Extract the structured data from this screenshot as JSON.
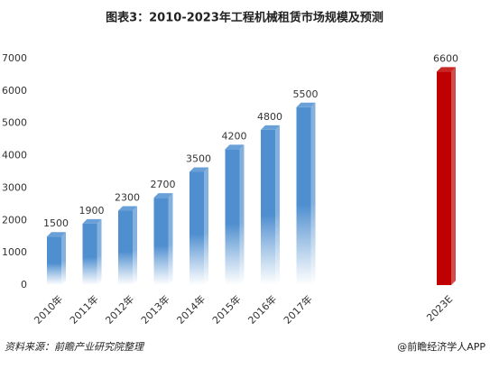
{
  "chart_data": {
    "type": "bar3d",
    "title": "图表3：2010-2023年工程机械租赁市场规模及预测",
    "categories": [
      "2010年",
      "2011年",
      "2012年",
      "2013年",
      "2014年",
      "2015年",
      "2016年",
      "2017年",
      "2023E"
    ],
    "values": [
      1500,
      1900,
      2300,
      2700,
      3500,
      4200,
      4800,
      5500,
      6600
    ],
    "colors": [
      "#4f8fd0",
      "#4f8fd0",
      "#4f8fd0",
      "#4f8fd0",
      "#4f8fd0",
      "#4f8fd0",
      "#4f8fd0",
      "#4f8fd0",
      "#c00000"
    ],
    "ylim": [
      0,
      7000
    ],
    "yticks": [
      0,
      1000,
      2000,
      3000,
      4000,
      5000,
      6000,
      7000
    ],
    "grid": false,
    "source": "资料来源：前瞻产业研究院整理",
    "credit": "@前瞻经济学人APP"
  }
}
